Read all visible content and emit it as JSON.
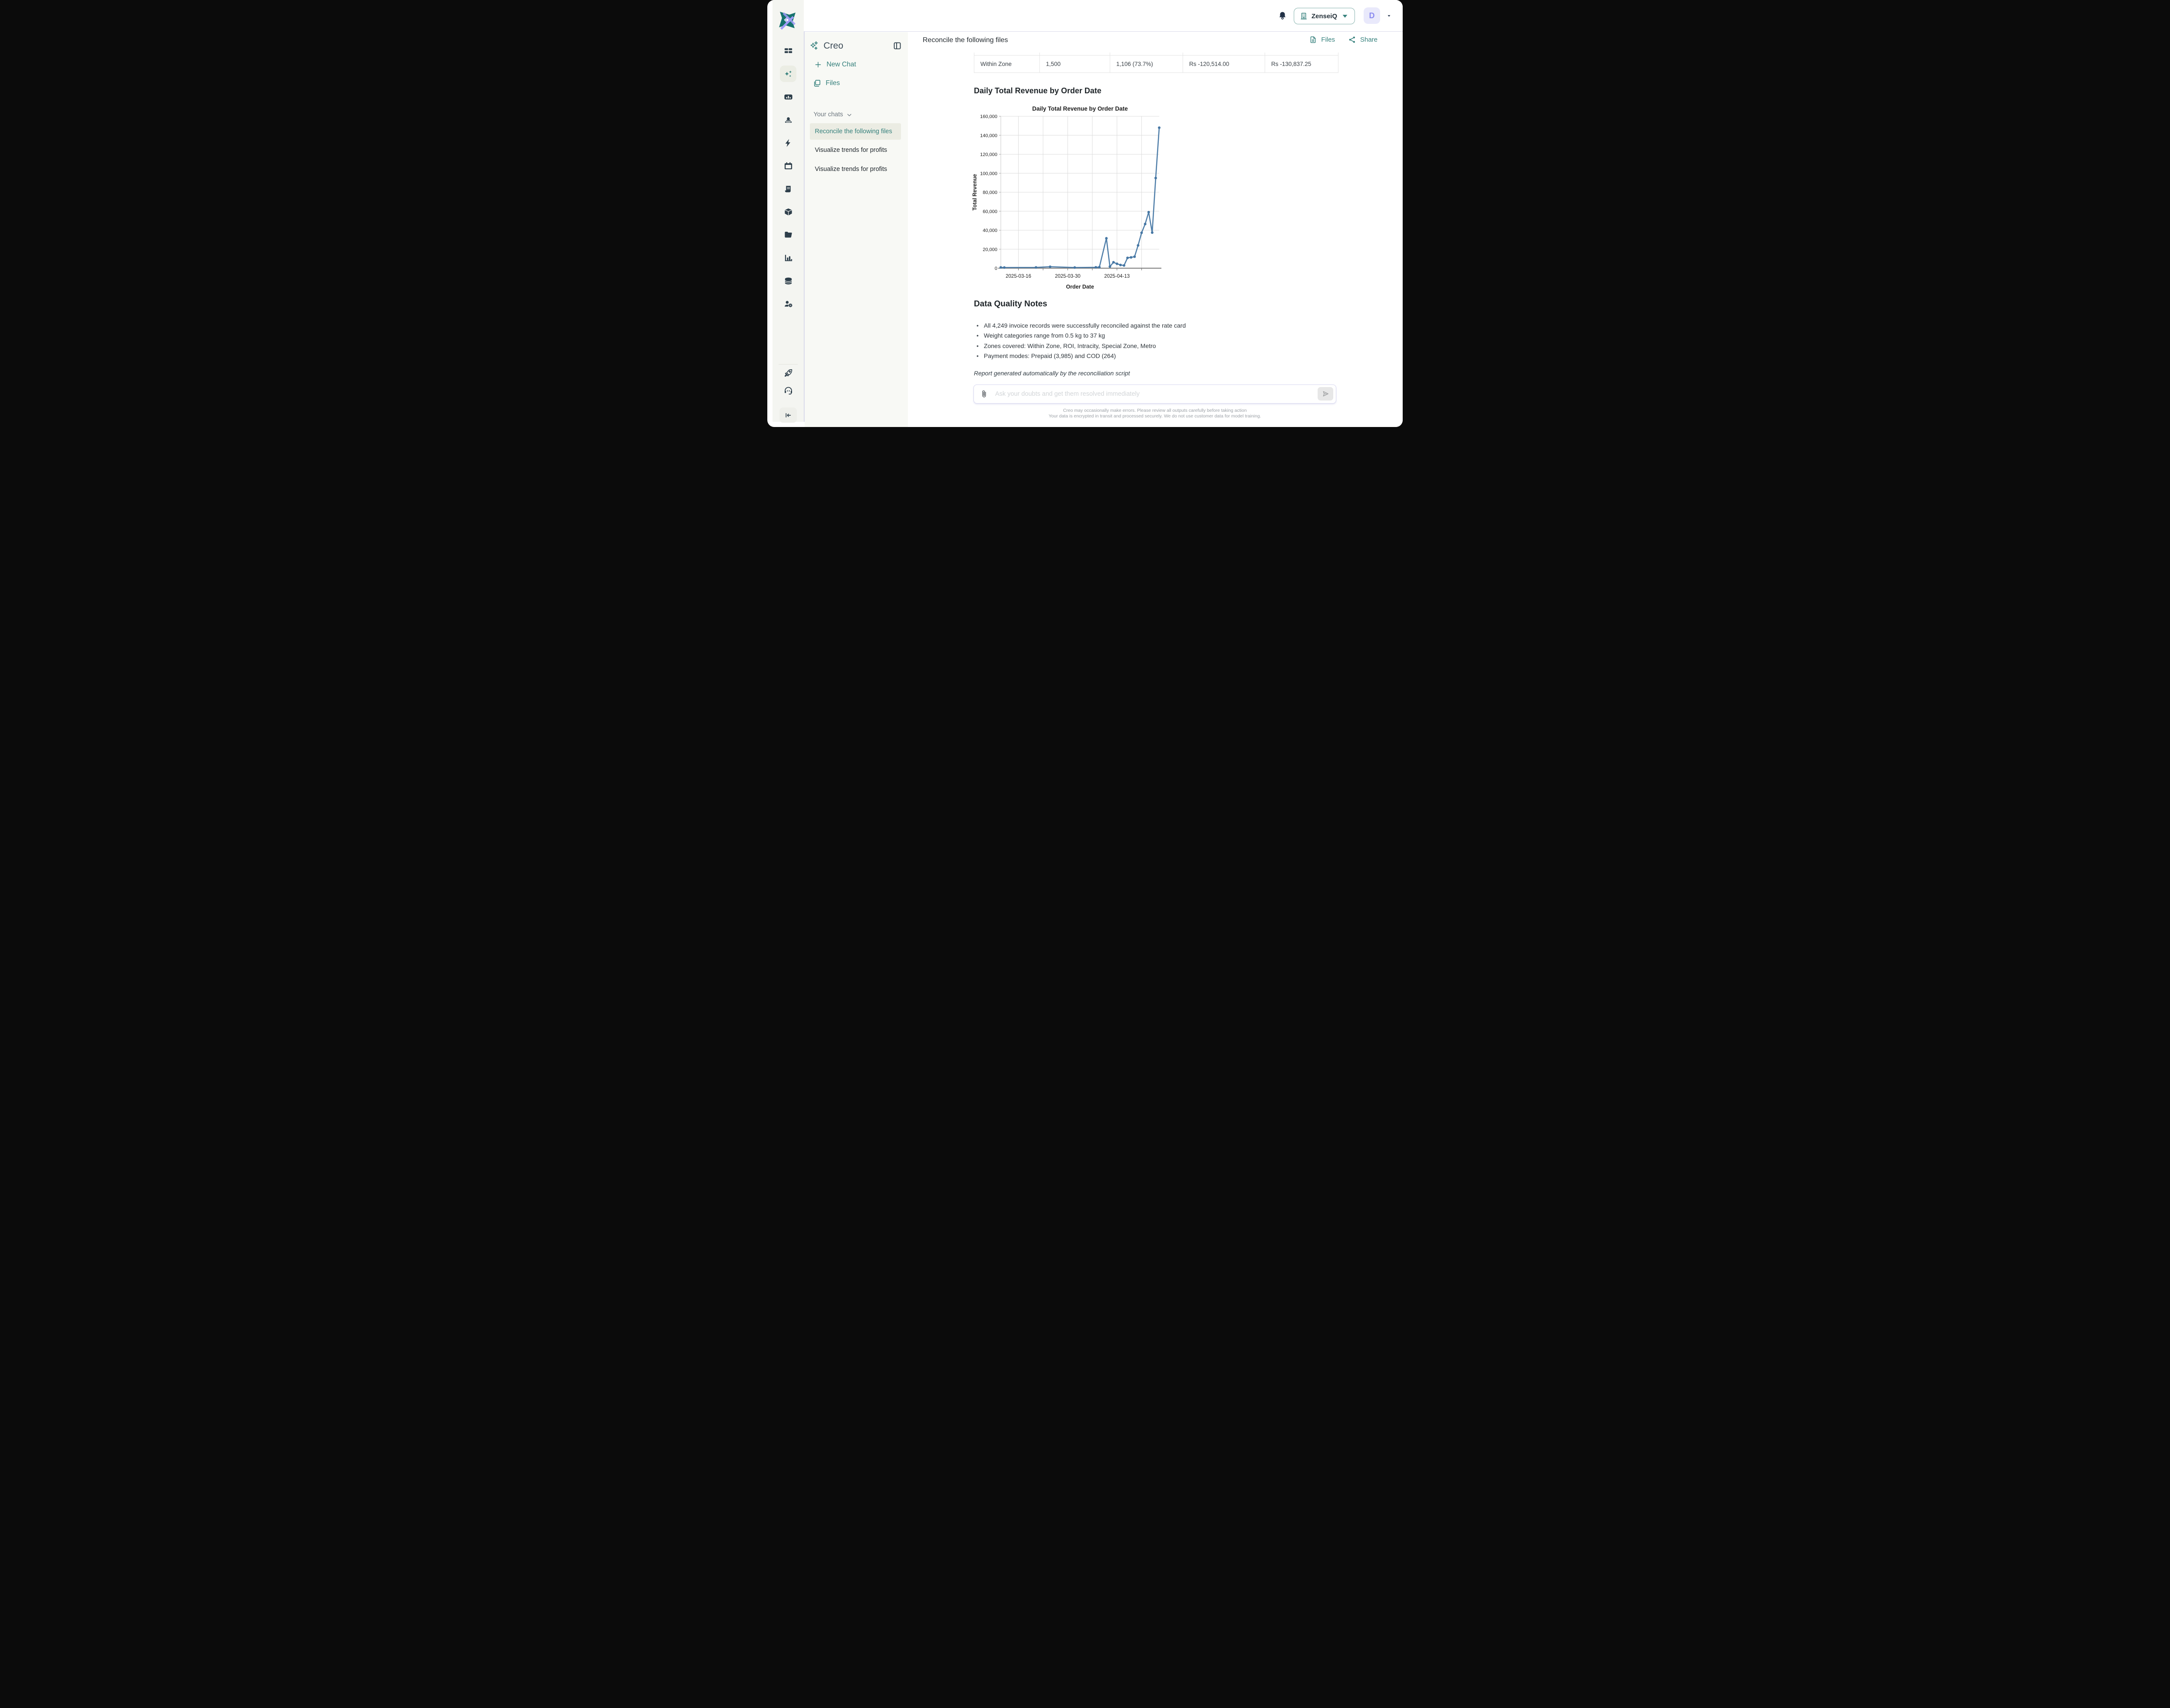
{
  "topbar": {
    "org_name": "ZenseiQ",
    "avatar_initial": "D"
  },
  "rail": {
    "items": [
      {
        "name": "dashboard",
        "icon": "dashboard-grid-icon",
        "active": false
      },
      {
        "name": "creo-assistant",
        "icon": "sparkles-icon",
        "active": true
      },
      {
        "name": "reports",
        "icon": "poll-chart-icon",
        "active": false
      },
      {
        "name": "contacts",
        "icon": "person-desk-icon",
        "active": false
      },
      {
        "name": "automations",
        "icon": "bolt-icon",
        "active": false
      },
      {
        "name": "calendar",
        "icon": "calendar-icon",
        "active": false
      },
      {
        "name": "billing",
        "icon": "receipt-icon",
        "active": false
      },
      {
        "name": "orders",
        "icon": "package-icon",
        "active": false
      },
      {
        "name": "files",
        "icon": "folder-icon",
        "active": false
      },
      {
        "name": "analytics",
        "icon": "bar-chart-icon",
        "active": false
      },
      {
        "name": "data",
        "icon": "database-icon",
        "active": false
      },
      {
        "name": "user-admin",
        "icon": "user-gear-icon",
        "active": false
      }
    ],
    "footer_items": [
      {
        "name": "getting-started",
        "icon": "rocket-icon"
      },
      {
        "name": "support",
        "icon": "headset-icon"
      }
    ]
  },
  "chat_panel": {
    "title": "Creo",
    "new_chat_label": "New Chat",
    "files_label": "Files",
    "your_chats_label": "Your chats",
    "chats": [
      {
        "label": "Reconcile the following files",
        "active": true
      },
      {
        "label": "Visualize trends for profits",
        "active": false
      },
      {
        "label": "Visualize trends for profits",
        "active": false
      }
    ]
  },
  "main": {
    "title": "Reconcile the following files",
    "files_button": "Files",
    "share_button": "Share",
    "table": {
      "row": [
        "Within Zone",
        "1,500",
        "1,106 (73.7%)",
        "Rs -120,514.00",
        "Rs -130,837.25"
      ]
    },
    "section_heading": "Daily Total Revenue by Order Date",
    "notes_heading": "Data Quality Notes",
    "notes": [
      "All 4,249 invoice records were successfully reconciled against the rate card",
      "Weight categories range from 0.5 kg to 37 kg",
      "Zones covered: Within Zone, ROI, Intracity, Special Zone, Metro",
      "Payment modes: Prepaid (3,985) and COD (264)"
    ],
    "footnote": "Report generated automatically by the reconciliation script",
    "composer": {
      "placeholder": "Ask your doubts and get them resolved immediately"
    },
    "footer_lines": [
      "Creo may occasionally make errors. Please review all outputs carefully before taking action",
      "Your data is encrypted in transit and processed securely. We do not use customer data for model training."
    ]
  },
  "colors": {
    "accent_teal": "#35807c",
    "slate_icon": "#2d3e4a",
    "chart_line": "#4677a4",
    "avatar_purple": "#8c8cf0",
    "active_row_bg": "#ebece3"
  },
  "chart_data": {
    "type": "line",
    "title": "Daily Total Revenue by Order Date",
    "xlabel": "Order Date",
    "ylabel": "Total Revenue",
    "ylim": [
      0,
      160000
    ],
    "ytick_step": 20000,
    "x_domain": [
      "2025-03-11",
      "2025-04-25"
    ],
    "x_gridlines": [
      "2025-03-16",
      "2025-03-23",
      "2025-03-30",
      "2025-04-06",
      "2025-04-13",
      "2025-04-20"
    ],
    "x_tick_labels": [
      "2025-03-16",
      "2025-03-30",
      "2025-04-13"
    ],
    "grid": true,
    "legend": "none",
    "series": [
      {
        "name": "Total Revenue",
        "points": [
          [
            "2025-03-11",
            800
          ],
          [
            "2025-03-12",
            700
          ],
          [
            "2025-03-21",
            800
          ],
          [
            "2025-03-25",
            1500
          ],
          [
            "2025-04-01",
            700
          ],
          [
            "2025-04-07",
            900
          ],
          [
            "2025-04-08",
            1100
          ],
          [
            "2025-04-10",
            31500
          ],
          [
            "2025-04-11",
            1700
          ],
          [
            "2025-04-12",
            6200
          ],
          [
            "2025-04-13",
            4600
          ],
          [
            "2025-04-14",
            3400
          ],
          [
            "2025-04-15",
            2900
          ],
          [
            "2025-04-16",
            10900
          ],
          [
            "2025-04-17",
            11400
          ],
          [
            "2025-04-18",
            12100
          ],
          [
            "2025-04-19",
            24000
          ],
          [
            "2025-04-20",
            37300
          ],
          [
            "2025-04-21",
            46500
          ],
          [
            "2025-04-22",
            59000
          ],
          [
            "2025-04-23",
            37500
          ],
          [
            "2025-04-24",
            95000
          ],
          [
            "2025-04-25",
            148000
          ]
        ]
      }
    ]
  }
}
